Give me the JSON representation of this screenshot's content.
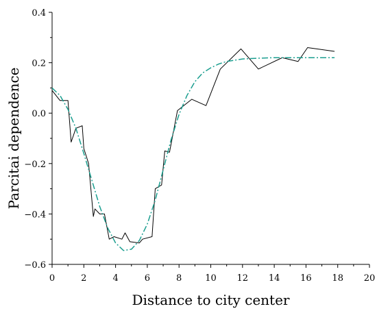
{
  "chart_data": {
    "type": "line",
    "title": "",
    "xlabel": "Distance to city center",
    "ylabel": "Parcitai dependence",
    "xlim": [
      0,
      20
    ],
    "ylim": [
      -0.6,
      0.4
    ],
    "x_ticks": [
      0,
      2,
      4,
      6,
      8,
      10,
      12,
      14,
      16,
      18,
      20
    ],
    "y_ticks": [
      -0.6,
      -0.4,
      -0.2,
      0.0,
      0.2,
      0.4
    ],
    "x_tick_labels": [
      "0",
      "2",
      "4",
      "6",
      "8",
      "10",
      "12",
      "14",
      "16",
      "18",
      "20"
    ],
    "y_tick_labels": [
      "−0.6",
      "−0.4",
      "−0.2",
      "0.0",
      "0.2",
      "0.4"
    ],
    "grid": false,
    "legend": "none",
    "series": [
      {
        "style": "solid",
        "color": "#000000",
        "points": [
          [
            0.0,
            0.09
          ],
          [
            0.5,
            0.05
          ],
          [
            1.0,
            0.05
          ],
          [
            1.2,
            -0.115
          ],
          [
            1.5,
            -0.06
          ],
          [
            1.9,
            -0.05
          ],
          [
            2.0,
            -0.14
          ],
          [
            2.3,
            -0.2
          ],
          [
            2.6,
            -0.41
          ],
          [
            2.7,
            -0.38
          ],
          [
            3.0,
            -0.4
          ],
          [
            3.3,
            -0.4
          ],
          [
            3.6,
            -0.5
          ],
          [
            3.9,
            -0.49
          ],
          [
            4.4,
            -0.5
          ],
          [
            4.6,
            -0.475
          ],
          [
            4.9,
            -0.51
          ],
          [
            5.5,
            -0.515
          ],
          [
            5.7,
            -0.5
          ],
          [
            6.3,
            -0.49
          ],
          [
            6.5,
            -0.3
          ],
          [
            6.9,
            -0.285
          ],
          [
            7.1,
            -0.15
          ],
          [
            7.4,
            -0.155
          ],
          [
            7.9,
            0.01
          ],
          [
            8.8,
            0.055
          ],
          [
            9.7,
            0.03
          ],
          [
            10.6,
            0.175
          ],
          [
            11.9,
            0.255
          ],
          [
            13.0,
            0.175
          ],
          [
            14.5,
            0.22
          ],
          [
            15.5,
            0.205
          ],
          [
            16.1,
            0.26
          ],
          [
            17.8,
            0.245
          ]
        ]
      },
      {
        "style": "dash-dot",
        "color": "#1a9e8f",
        "points": [
          [
            0.0,
            0.1
          ],
          [
            0.5,
            0.07
          ],
          [
            1.0,
            0.015
          ],
          [
            1.5,
            -0.06
          ],
          [
            2.0,
            -0.16
          ],
          [
            2.5,
            -0.265
          ],
          [
            3.0,
            -0.37
          ],
          [
            3.5,
            -0.455
          ],
          [
            4.0,
            -0.515
          ],
          [
            4.5,
            -0.545
          ],
          [
            5.0,
            -0.54
          ],
          [
            5.5,
            -0.505
          ],
          [
            6.0,
            -0.44
          ],
          [
            6.5,
            -0.345
          ],
          [
            7.0,
            -0.225
          ],
          [
            7.5,
            -0.105
          ],
          [
            8.0,
            -0.005
          ],
          [
            8.5,
            0.07
          ],
          [
            9.0,
            0.125
          ],
          [
            9.5,
            0.16
          ],
          [
            10.0,
            0.18
          ],
          [
            10.5,
            0.195
          ],
          [
            11.0,
            0.205
          ],
          [
            12.0,
            0.215
          ],
          [
            13.0,
            0.218
          ],
          [
            14.0,
            0.22
          ],
          [
            15.0,
            0.22
          ],
          [
            16.0,
            0.22
          ],
          [
            17.0,
            0.22
          ],
          [
            17.8,
            0.22
          ]
        ]
      }
    ]
  }
}
